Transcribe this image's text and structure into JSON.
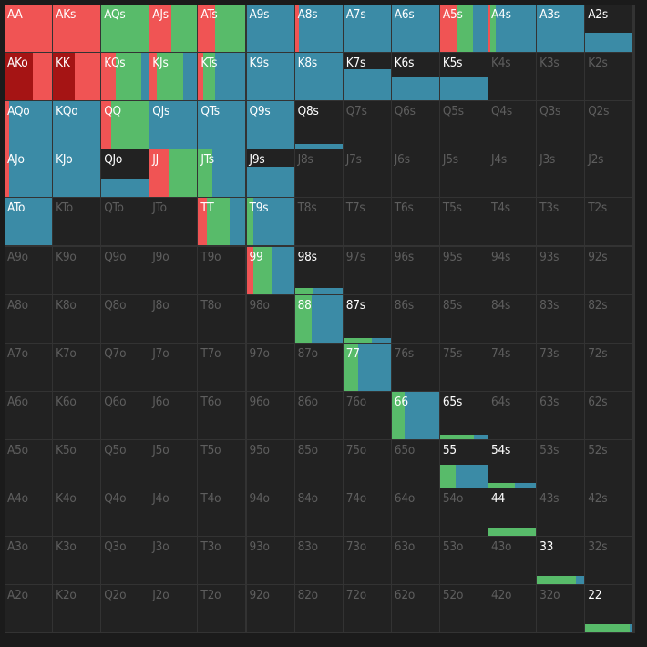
{
  "colors": {
    "raise": "#f05454",
    "raise_strong": "#a51414",
    "call": "#58bb6a",
    "fold": "#3b8ba6"
  },
  "ranks": [
    "A",
    "K",
    "Q",
    "J",
    "T",
    "9",
    "8",
    "7",
    "6",
    "5",
    "4",
    "3",
    "2"
  ],
  "hands": [
    [
      {
        "label": "AA",
        "w": 1.0,
        "mix": [
          [
            "raise",
            1.0
          ]
        ]
      },
      {
        "label": "AKs",
        "w": 1.0,
        "mix": [
          [
            "raise",
            1.0
          ]
        ]
      },
      {
        "label": "AQs",
        "w": 1.0,
        "mix": [
          [
            "call",
            1.0
          ]
        ]
      },
      {
        "label": "AJs",
        "w": 1.0,
        "mix": [
          [
            "raise",
            0.45
          ],
          [
            "call",
            0.55
          ]
        ]
      },
      {
        "label": "ATs",
        "w": 1.0,
        "mix": [
          [
            "raise",
            0.35
          ],
          [
            "call",
            0.65
          ]
        ]
      },
      {
        "label": "A9s",
        "w": 1.0,
        "mix": [
          [
            "fold",
            1.0
          ]
        ]
      },
      {
        "label": "A8s",
        "w": 1.0,
        "mix": [
          [
            "raise",
            0.08
          ],
          [
            "fold",
            0.92
          ]
        ]
      },
      {
        "label": "A7s",
        "w": 1.0,
        "mix": [
          [
            "fold",
            1.0
          ]
        ]
      },
      {
        "label": "A6s",
        "w": 1.0,
        "mix": [
          [
            "fold",
            1.0
          ]
        ]
      },
      {
        "label": "A5s",
        "w": 1.0,
        "mix": [
          [
            "raise",
            0.35
          ],
          [
            "call",
            0.35
          ],
          [
            "fold",
            0.3
          ]
        ]
      },
      {
        "label": "A4s",
        "w": 1.0,
        "mix": [
          [
            "raise",
            0.03
          ],
          [
            "call",
            0.12
          ],
          [
            "fold",
            0.85
          ]
        ]
      },
      {
        "label": "A3s",
        "w": 1.0,
        "mix": [
          [
            "fold",
            1.0
          ]
        ]
      },
      {
        "label": "A2s",
        "w": 0.4,
        "mix": [
          [
            "fold",
            1.0
          ]
        ]
      }
    ],
    [
      {
        "label": "AKo",
        "w": 1.0,
        "mix": [
          [
            "raise_strong",
            0.6
          ],
          [
            "raise",
            0.4
          ]
        ]
      },
      {
        "label": "KK",
        "w": 1.0,
        "mix": [
          [
            "raise_strong",
            0.45
          ],
          [
            "raise",
            0.55
          ]
        ]
      },
      {
        "label": "KQs",
        "w": 1.0,
        "mix": [
          [
            "raise",
            0.3
          ],
          [
            "call",
            0.55
          ],
          [
            "fold",
            0.15
          ]
        ]
      },
      {
        "label": "KJs",
        "w": 1.0,
        "mix": [
          [
            "raise",
            0.15
          ],
          [
            "call",
            0.55
          ],
          [
            "fold",
            0.3
          ]
        ]
      },
      {
        "label": "KTs",
        "w": 1.0,
        "mix": [
          [
            "raise",
            0.1
          ],
          [
            "call",
            0.25
          ],
          [
            "fold",
            0.65
          ]
        ]
      },
      {
        "label": "K9s",
        "w": 1.0,
        "mix": [
          [
            "fold",
            1.0
          ]
        ]
      },
      {
        "label": "K8s",
        "w": 1.0,
        "mix": [
          [
            "fold",
            1.0
          ]
        ]
      },
      {
        "label": "K7s",
        "w": 0.65,
        "mix": [
          [
            "fold",
            1.0
          ]
        ]
      },
      {
        "label": "K6s",
        "w": 0.5,
        "mix": [
          [
            "fold",
            1.0
          ]
        ]
      },
      {
        "label": "K5s",
        "w": 0.5,
        "mix": [
          [
            "fold",
            1.0
          ]
        ]
      },
      {
        "label": "K4s",
        "w": 0.0,
        "mix": []
      },
      {
        "label": "K3s",
        "w": 0.0,
        "mix": []
      },
      {
        "label": "K2s",
        "w": 0.0,
        "mix": []
      }
    ],
    [
      {
        "label": "AQo",
        "w": 1.0,
        "mix": [
          [
            "raise",
            0.1
          ],
          [
            "fold",
            0.9
          ]
        ]
      },
      {
        "label": "KQo",
        "w": 1.0,
        "mix": [
          [
            "fold",
            1.0
          ]
        ]
      },
      {
        "label": "QQ",
        "w": 1.0,
        "mix": [
          [
            "raise",
            0.2
          ],
          [
            "call",
            0.8
          ]
        ]
      },
      {
        "label": "QJs",
        "w": 1.0,
        "mix": [
          [
            "fold",
            1.0
          ]
        ]
      },
      {
        "label": "QTs",
        "w": 1.0,
        "mix": [
          [
            "fold",
            1.0
          ]
        ]
      },
      {
        "label": "Q9s",
        "w": 1.0,
        "mix": [
          [
            "fold",
            1.0
          ]
        ]
      },
      {
        "label": "Q8s",
        "w": 0.08,
        "mix": [
          [
            "fold",
            1.0
          ]
        ]
      },
      {
        "label": "Q7s",
        "w": 0.0,
        "mix": []
      },
      {
        "label": "Q6s",
        "w": 0.0,
        "mix": []
      },
      {
        "label": "Q5s",
        "w": 0.0,
        "mix": []
      },
      {
        "label": "Q4s",
        "w": 0.0,
        "mix": []
      },
      {
        "label": "Q3s",
        "w": 0.0,
        "mix": []
      },
      {
        "label": "Q2s",
        "w": 0.0,
        "mix": []
      }
    ],
    [
      {
        "label": "AJo",
        "w": 1.0,
        "mix": [
          [
            "raise",
            0.1
          ],
          [
            "fold",
            0.9
          ]
        ]
      },
      {
        "label": "KJo",
        "w": 1.0,
        "mix": [
          [
            "fold",
            1.0
          ]
        ]
      },
      {
        "label": "QJo",
        "w": 0.4,
        "mix": [
          [
            "fold",
            1.0
          ]
        ]
      },
      {
        "label": "JJ",
        "w": 1.0,
        "mix": [
          [
            "raise",
            0.42
          ],
          [
            "call",
            0.58
          ]
        ]
      },
      {
        "label": "JTs",
        "w": 1.0,
        "mix": [
          [
            "call",
            0.3
          ],
          [
            "fold",
            0.7
          ]
        ]
      },
      {
        "label": "J9s",
        "w": 0.65,
        "mix": [
          [
            "fold",
            1.0
          ]
        ]
      },
      {
        "label": "J8s",
        "w": 0.0,
        "mix": []
      },
      {
        "label": "J7s",
        "w": 0.0,
        "mix": []
      },
      {
        "label": "J6s",
        "w": 0.0,
        "mix": []
      },
      {
        "label": "J5s",
        "w": 0.0,
        "mix": []
      },
      {
        "label": "J4s",
        "w": 0.0,
        "mix": []
      },
      {
        "label": "J3s",
        "w": 0.0,
        "mix": []
      },
      {
        "label": "J2s",
        "w": 0.0,
        "mix": []
      }
    ],
    [
      {
        "label": "ATo",
        "w": 1.0,
        "mix": [
          [
            "fold",
            1.0
          ]
        ]
      },
      {
        "label": "KTo",
        "w": 0.0,
        "mix": []
      },
      {
        "label": "QTo",
        "w": 0.0,
        "mix": []
      },
      {
        "label": "JTo",
        "w": 0.0,
        "mix": []
      },
      {
        "label": "TT",
        "w": 1.0,
        "mix": [
          [
            "raise",
            0.18
          ],
          [
            "call",
            0.48
          ],
          [
            "fold",
            0.34
          ]
        ]
      },
      {
        "label": "T9s",
        "w": 1.0,
        "mix": [
          [
            "call",
            0.15
          ],
          [
            "fold",
            0.85
          ]
        ]
      },
      {
        "label": "T8s",
        "w": 0.0,
        "mix": []
      },
      {
        "label": "T7s",
        "w": 0.0,
        "mix": []
      },
      {
        "label": "T6s",
        "w": 0.0,
        "mix": []
      },
      {
        "label": "T5s",
        "w": 0.0,
        "mix": []
      },
      {
        "label": "T4s",
        "w": 0.0,
        "mix": []
      },
      {
        "label": "T3s",
        "w": 0.0,
        "mix": []
      },
      {
        "label": "T2s",
        "w": 0.0,
        "mix": []
      }
    ],
    [
      {
        "label": "A9o",
        "w": 0.0,
        "mix": []
      },
      {
        "label": "K9o",
        "w": 0.0,
        "mix": []
      },
      {
        "label": "Q9o",
        "w": 0.0,
        "mix": []
      },
      {
        "label": "J9o",
        "w": 0.0,
        "mix": []
      },
      {
        "label": "T9o",
        "w": 0.0,
        "mix": []
      },
      {
        "label": "99",
        "w": 1.0,
        "mix": [
          [
            "raise",
            0.15
          ],
          [
            "call",
            0.4
          ],
          [
            "fold",
            0.45
          ]
        ]
      },
      {
        "label": "98s",
        "w": 0.13,
        "mix": [
          [
            "call",
            0.4
          ],
          [
            "fold",
            0.6
          ]
        ]
      },
      {
        "label": "97s",
        "w": 0.0,
        "mix": []
      },
      {
        "label": "96s",
        "w": 0.0,
        "mix": []
      },
      {
        "label": "95s",
        "w": 0.0,
        "mix": []
      },
      {
        "label": "94s",
        "w": 0.0,
        "mix": []
      },
      {
        "label": "93s",
        "w": 0.0,
        "mix": []
      },
      {
        "label": "92s",
        "w": 0.0,
        "mix": []
      }
    ],
    [
      {
        "label": "A8o",
        "w": 0.0,
        "mix": []
      },
      {
        "label": "K8o",
        "w": 0.0,
        "mix": []
      },
      {
        "label": "Q8o",
        "w": 0.0,
        "mix": []
      },
      {
        "label": "J8o",
        "w": 0.0,
        "mix": []
      },
      {
        "label": "T8o",
        "w": 0.0,
        "mix": []
      },
      {
        "label": "98o",
        "w": 0.0,
        "mix": []
      },
      {
        "label": "88",
        "w": 1.0,
        "mix": [
          [
            "call",
            0.35
          ],
          [
            "fold",
            0.65
          ]
        ]
      },
      {
        "label": "87s",
        "w": 0.08,
        "mix": [
          [
            "call",
            0.6
          ],
          [
            "fold",
            0.4
          ]
        ]
      },
      {
        "label": "86s",
        "w": 0.0,
        "mix": []
      },
      {
        "label": "85s",
        "w": 0.0,
        "mix": []
      },
      {
        "label": "84s",
        "w": 0.0,
        "mix": []
      },
      {
        "label": "83s",
        "w": 0.0,
        "mix": []
      },
      {
        "label": "82s",
        "w": 0.0,
        "mix": []
      }
    ],
    [
      {
        "label": "A7o",
        "w": 0.0,
        "mix": []
      },
      {
        "label": "K7o",
        "w": 0.0,
        "mix": []
      },
      {
        "label": "Q7o",
        "w": 0.0,
        "mix": []
      },
      {
        "label": "J7o",
        "w": 0.0,
        "mix": []
      },
      {
        "label": "T7o",
        "w": 0.0,
        "mix": []
      },
      {
        "label": "97o",
        "w": 0.0,
        "mix": []
      },
      {
        "label": "87o",
        "w": 0.0,
        "mix": []
      },
      {
        "label": "77",
        "w": 1.0,
        "mix": [
          [
            "call",
            0.32
          ],
          [
            "fold",
            0.68
          ]
        ]
      },
      {
        "label": "76s",
        "w": 0.0,
        "mix": []
      },
      {
        "label": "75s",
        "w": 0.0,
        "mix": []
      },
      {
        "label": "74s",
        "w": 0.0,
        "mix": []
      },
      {
        "label": "73s",
        "w": 0.0,
        "mix": []
      },
      {
        "label": "72s",
        "w": 0.0,
        "mix": []
      }
    ],
    [
      {
        "label": "A6o",
        "w": 0.0,
        "mix": []
      },
      {
        "label": "K6o",
        "w": 0.0,
        "mix": []
      },
      {
        "label": "Q6o",
        "w": 0.0,
        "mix": []
      },
      {
        "label": "J6o",
        "w": 0.0,
        "mix": []
      },
      {
        "label": "T6o",
        "w": 0.0,
        "mix": []
      },
      {
        "label": "96o",
        "w": 0.0,
        "mix": []
      },
      {
        "label": "86o",
        "w": 0.0,
        "mix": []
      },
      {
        "label": "76o",
        "w": 0.0,
        "mix": []
      },
      {
        "label": "66",
        "w": 1.0,
        "mix": [
          [
            "call",
            0.28
          ],
          [
            "fold",
            0.72
          ]
        ]
      },
      {
        "label": "65s",
        "w": 0.1,
        "mix": [
          [
            "call",
            0.72
          ],
          [
            "fold",
            0.28
          ]
        ]
      },
      {
        "label": "64s",
        "w": 0.0,
        "mix": []
      },
      {
        "label": "63s",
        "w": 0.0,
        "mix": []
      },
      {
        "label": "62s",
        "w": 0.0,
        "mix": []
      }
    ],
    [
      {
        "label": "A5o",
        "w": 0.0,
        "mix": []
      },
      {
        "label": "K5o",
        "w": 0.0,
        "mix": []
      },
      {
        "label": "Q5o",
        "w": 0.0,
        "mix": []
      },
      {
        "label": "J5o",
        "w": 0.0,
        "mix": []
      },
      {
        "label": "T5o",
        "w": 0.0,
        "mix": []
      },
      {
        "label": "95o",
        "w": 0.0,
        "mix": []
      },
      {
        "label": "85o",
        "w": 0.0,
        "mix": []
      },
      {
        "label": "75o",
        "w": 0.0,
        "mix": []
      },
      {
        "label": "65o",
        "w": 0.0,
        "mix": []
      },
      {
        "label": "55",
        "w": 0.48,
        "mix": [
          [
            "call",
            0.32
          ],
          [
            "fold",
            0.68
          ]
        ]
      },
      {
        "label": "54s",
        "w": 0.06,
        "mix": [
          [
            "call",
            0.55
          ],
          [
            "fold",
            0.45
          ]
        ]
      },
      {
        "label": "53s",
        "w": 0.0,
        "mix": []
      },
      {
        "label": "52s",
        "w": 0.0,
        "mix": []
      }
    ],
    [
      {
        "label": "A4o",
        "w": 0.0,
        "mix": []
      },
      {
        "label": "K4o",
        "w": 0.0,
        "mix": []
      },
      {
        "label": "Q4o",
        "w": 0.0,
        "mix": []
      },
      {
        "label": "J4o",
        "w": 0.0,
        "mix": []
      },
      {
        "label": "T4o",
        "w": 0.0,
        "mix": []
      },
      {
        "label": "94o",
        "w": 0.0,
        "mix": []
      },
      {
        "label": "84o",
        "w": 0.0,
        "mix": []
      },
      {
        "label": "74o",
        "w": 0.0,
        "mix": []
      },
      {
        "label": "64o",
        "w": 0.0,
        "mix": []
      },
      {
        "label": "54o",
        "w": 0.0,
        "mix": []
      },
      {
        "label": "44",
        "w": 0.18,
        "mix": [
          [
            "call",
            1.0
          ]
        ]
      },
      {
        "label": "43s",
        "w": 0.0,
        "mix": []
      },
      {
        "label": "42s",
        "w": 0.0,
        "mix": []
      }
    ],
    [
      {
        "label": "A3o",
        "w": 0.0,
        "mix": []
      },
      {
        "label": "K3o",
        "w": 0.0,
        "mix": []
      },
      {
        "label": "Q3o",
        "w": 0.0,
        "mix": []
      },
      {
        "label": "J3o",
        "w": 0.0,
        "mix": []
      },
      {
        "label": "T3o",
        "w": 0.0,
        "mix": []
      },
      {
        "label": "93o",
        "w": 0.0,
        "mix": []
      },
      {
        "label": "83o",
        "w": 0.0,
        "mix": []
      },
      {
        "label": "73o",
        "w": 0.0,
        "mix": []
      },
      {
        "label": "63o",
        "w": 0.0,
        "mix": []
      },
      {
        "label": "53o",
        "w": 0.0,
        "mix": []
      },
      {
        "label": "43o",
        "w": 0.0,
        "mix": []
      },
      {
        "label": "33",
        "w": 0.18,
        "mix": [
          [
            "call",
            0.82
          ],
          [
            "fold",
            0.18
          ]
        ]
      },
      {
        "label": "32s",
        "w": 0.0,
        "mix": []
      }
    ],
    [
      {
        "label": "A2o",
        "w": 0.0,
        "mix": []
      },
      {
        "label": "K2o",
        "w": 0.0,
        "mix": []
      },
      {
        "label": "Q2o",
        "w": 0.0,
        "mix": []
      },
      {
        "label": "J2o",
        "w": 0.0,
        "mix": []
      },
      {
        "label": "T2o",
        "w": 0.0,
        "mix": []
      },
      {
        "label": "92o",
        "w": 0.0,
        "mix": []
      },
      {
        "label": "82o",
        "w": 0.0,
        "mix": []
      },
      {
        "label": "72o",
        "w": 0.0,
        "mix": []
      },
      {
        "label": "62o",
        "w": 0.0,
        "mix": []
      },
      {
        "label": "52o",
        "w": 0.0,
        "mix": []
      },
      {
        "label": "42o",
        "w": 0.0,
        "mix": []
      },
      {
        "label": "32o",
        "w": 0.0,
        "mix": []
      },
      {
        "label": "22",
        "w": 0.18,
        "mix": [
          [
            "call",
            0.93
          ],
          [
            "fold",
            0.07
          ]
        ]
      }
    ]
  ]
}
